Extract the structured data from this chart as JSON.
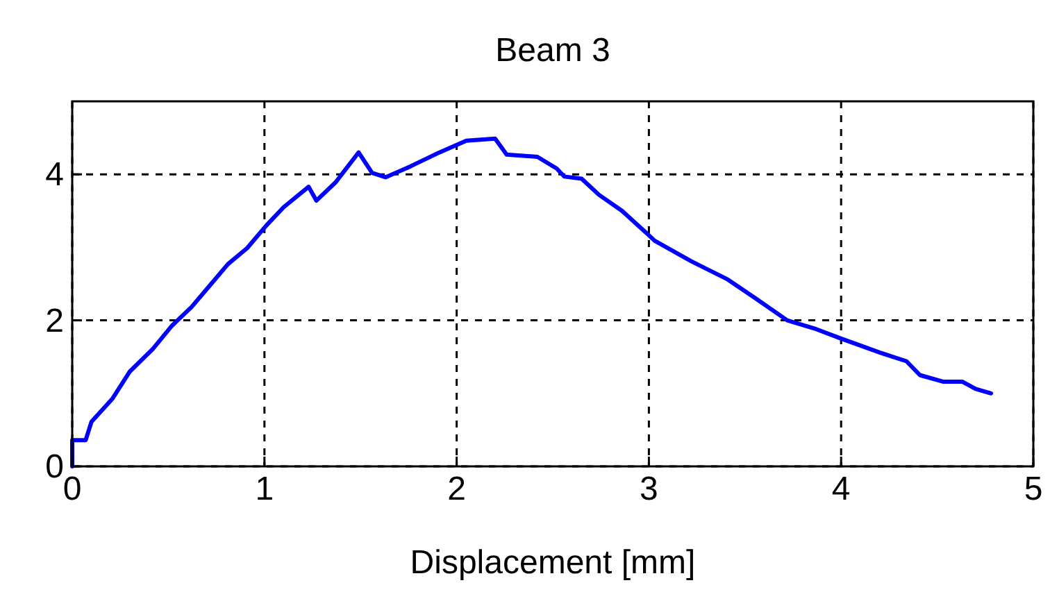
{
  "chart_data": {
    "type": "line",
    "title": "Beam 3",
    "xlabel": "Displacement [mm]",
    "xlim": [
      0,
      5
    ],
    "xticks": [
      0,
      1,
      2,
      3,
      4,
      5
    ],
    "ylim": [
      0,
      5
    ],
    "yticks": [
      0,
      2,
      4
    ],
    "grid": true,
    "line_style": "solid",
    "series": [
      {
        "color": "#0000ff",
        "x": [
          0,
          0,
          0.07,
          0.1,
          0.21,
          0.3,
          0.42,
          0.52,
          0.62,
          0.72,
          0.81,
          0.91,
          1.01,
          1.1,
          1.23,
          1.27,
          1.37,
          1.49,
          1.56,
          1.63,
          1.76,
          1.91,
          2.05,
          2.2,
          2.26,
          2.42,
          2.52,
          2.56,
          2.65,
          2.74,
          2.86,
          2.99,
          3.03,
          3.22,
          3.41,
          3.55,
          3.72,
          3.87,
          4.0,
          4.2,
          4.34,
          4.41,
          4.53,
          4.63,
          4.7,
          4.78
        ],
        "values": [
          0,
          0.36,
          0.36,
          0.61,
          0.93,
          1.3,
          1.61,
          1.93,
          2.18,
          2.49,
          2.77,
          2.99,
          3.3,
          3.55,
          3.83,
          3.64,
          3.89,
          4.3,
          4.02,
          3.96,
          4.11,
          4.3,
          4.46,
          4.49,
          4.27,
          4.24,
          4.08,
          3.97,
          3.94,
          3.72,
          3.5,
          3.19,
          3.09,
          2.81,
          2.56,
          2.31,
          2.0,
          1.88,
          1.75,
          1.56,
          1.44,
          1.25,
          1.16,
          1.16,
          1.06,
          1.0
        ]
      }
    ]
  }
}
